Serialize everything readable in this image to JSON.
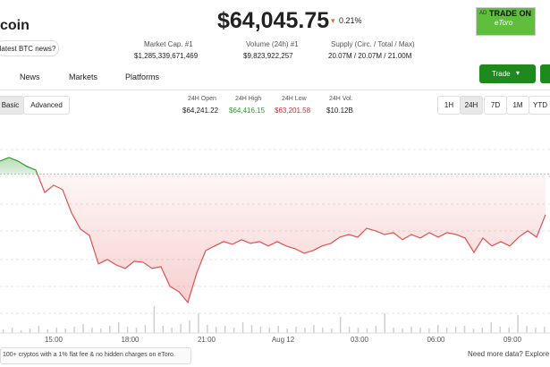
{
  "header": {
    "name": "coin",
    "news_button": "latest BTC news?",
    "price": "$64,045.75",
    "change": "0.21%"
  },
  "ad": {
    "label": "AD",
    "line1": "TRADE ON",
    "line2": "eToro"
  },
  "stats": [
    {
      "label": "Market Cap. #1",
      "value": "$1,285,339,671,469"
    },
    {
      "label": "Volume (24h) #1",
      "value": "$9,823,922,257"
    },
    {
      "label": "Supply (Circ. / Total / Max)",
      "value": "20.07M / 20.07M / 21.00M"
    }
  ],
  "tabs": [
    "News",
    "Markets",
    "Platforms"
  ],
  "trade_button": "Trade",
  "view_toggle": [
    "Basic",
    "Advanced"
  ],
  "day_stats": [
    {
      "label": "24H Open",
      "value": "$64,241.22"
    },
    {
      "label": "24H High",
      "value": "$64,416.15"
    },
    {
      "label": "24H Low",
      "value": "$63,201.58"
    },
    {
      "label": "24H Vol.",
      "value": "$10.12B"
    }
  ],
  "ranges": [
    "1H",
    "24H",
    "7D",
    "1M",
    "YTD"
  ],
  "price_chart": {
    "type": "line",
    "x_labels": [
      "15:00",
      "18:00",
      "21:00",
      "Aug 12",
      "03:00",
      "06:00",
      "09:00"
    ],
    "values": [
      64345,
      64373,
      64345,
      64302,
      64273,
      64094,
      64152,
      64116,
      63930,
      63801,
      63751,
      63523,
      63558,
      63515,
      63487,
      63544,
      63537,
      63487,
      63501,
      63344,
      63301,
      63215,
      63451,
      63630,
      63666,
      63701,
      63680,
      63716,
      63687,
      63701,
      63666,
      63701,
      63666,
      63644,
      63608,
      63630,
      63666,
      63687,
      63737,
      63758,
      63737,
      63808,
      63787,
      63758,
      63773,
      63716,
      63758,
      63730,
      63773,
      63737,
      63773,
      63758,
      63730,
      63615,
      63730,
      63666,
      63701,
      63666,
      63737,
      63787,
      63737,
      63916
    ],
    "ylim": [
      63150,
      64480
    ],
    "reference": 64241.22,
    "volume": [
      4,
      6,
      3,
      5,
      8,
      4,
      6,
      5,
      7,
      10,
      6,
      5,
      8,
      12,
      7,
      6,
      9,
      30,
      8,
      6,
      10,
      14,
      22,
      9,
      7,
      8,
      6,
      12,
      9,
      7,
      6,
      8,
      5,
      7,
      6,
      9,
      6,
      5,
      18,
      7,
      6,
      5,
      8,
      22,
      6,
      5,
      7,
      6,
      5,
      9,
      6,
      7,
      8,
      5,
      6,
      12,
      7,
      6,
      20,
      8,
      6,
      7
    ],
    "vlim": [
      0,
      40
    ]
  },
  "footer": {
    "promo": "100+ cryptos with a 1% flat fee & no hidden charges on eToro.",
    "more": "Need more data? Explore"
  }
}
